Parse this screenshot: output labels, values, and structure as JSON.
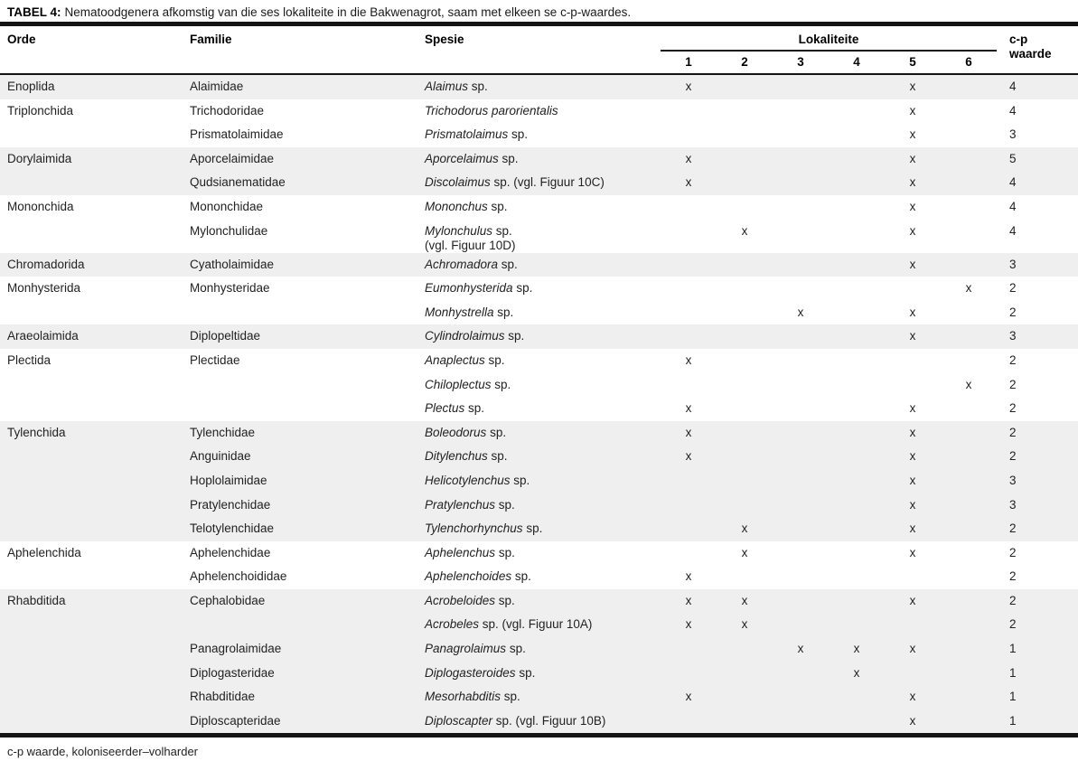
{
  "title": {
    "label": "TABEL 4:",
    "text": "Nematoodgenera afkomstig van die ses lokaliteite in die Bakwenagrot, saam met elkeen se c-p-waardes."
  },
  "header": {
    "orde": "Orde",
    "familie": "Familie",
    "spesie": "Spesie",
    "lokaliteite": "Lokaliteite",
    "locality_numbers": [
      "1",
      "2",
      "3",
      "4",
      "5",
      "6"
    ],
    "cp_line1": "c-p",
    "cp_line2": "waarde"
  },
  "footer": "c-p waarde, koloniseerder–volharder",
  "colors": {
    "stripe": "#efefef",
    "rule": "#141414",
    "text": "#222222"
  },
  "rows": [
    {
      "orde": "Enoplida",
      "familie": "Alaimidae",
      "genus": "Alaimus",
      "species_rest": " sp.",
      "species_line2": "",
      "marks": [
        "x",
        "",
        "",
        "",
        "x",
        ""
      ],
      "cp": "4",
      "shaded": true
    },
    {
      "orde": "Triplonchida",
      "familie": "Trichodoridae",
      "genus": "Trichodorus parorientalis",
      "species_rest": "",
      "species_line2": "",
      "marks": [
        "",
        "",
        "",
        "",
        "x",
        ""
      ],
      "cp": "4",
      "shaded": false
    },
    {
      "orde": "",
      "familie": "Prismatolaimidae",
      "genus": "Prismatolaimus",
      "species_rest": " sp.",
      "species_line2": "",
      "marks": [
        "",
        "",
        "",
        "",
        "x",
        ""
      ],
      "cp": "3",
      "shaded": false
    },
    {
      "orde": "Dorylaimida",
      "familie": "Aporcelaimidae",
      "genus": "Aporcelaimus",
      "species_rest": " sp.",
      "species_line2": "",
      "marks": [
        "x",
        "",
        "",
        "",
        "x",
        ""
      ],
      "cp": "5",
      "shaded": true
    },
    {
      "orde": "",
      "familie": "Qudsianematidae",
      "genus": "Discolaimus",
      "species_rest": " sp. (vgl. Figuur 10C)",
      "species_line2": "",
      "marks": [
        "x",
        "",
        "",
        "",
        "x",
        ""
      ],
      "cp": "4",
      "shaded": true
    },
    {
      "orde": "Mononchida",
      "familie": "Mononchidae",
      "genus": "Mononchus",
      "species_rest": " sp.",
      "species_line2": "",
      "marks": [
        "",
        "",
        "",
        "",
        "x",
        ""
      ],
      "cp": "4",
      "shaded": false
    },
    {
      "orde": "",
      "familie": "Mylonchulidae",
      "genus": "Mylonchulus",
      "species_rest": " sp.",
      "species_line2": "(vgl. Figuur 10D)",
      "marks": [
        "",
        "x",
        "",
        "",
        "x",
        ""
      ],
      "cp": "4",
      "shaded": false
    },
    {
      "orde": "Chromadorida",
      "familie": "Cyatholaimidae",
      "genus": "Achromadora",
      "species_rest": " sp.",
      "species_line2": "",
      "marks": [
        "",
        "",
        "",
        "",
        "x",
        ""
      ],
      "cp": "3",
      "shaded": true
    },
    {
      "orde": "Monhysterida",
      "familie": "Monhysteridae",
      "genus": "Eumonhysterida",
      "species_rest": " sp.",
      "species_line2": "",
      "marks": [
        "",
        "",
        "",
        "",
        "",
        "x"
      ],
      "cp": "2",
      "shaded": false
    },
    {
      "orde": "",
      "familie": "",
      "genus": "Monhystrella",
      "species_rest": " sp.",
      "species_line2": "",
      "marks": [
        "",
        "",
        "x",
        "",
        "x",
        ""
      ],
      "cp": "2",
      "shaded": false
    },
    {
      "orde": "Araeolaimida",
      "familie": "Diplopeltidae",
      "genus": "Cylindrolaimus",
      "species_rest": " sp.",
      "species_line2": "",
      "marks": [
        "",
        "",
        "",
        "",
        "x",
        ""
      ],
      "cp": "3",
      "shaded": true
    },
    {
      "orde": "Plectida",
      "familie": "Plectidae",
      "genus": "Anaplectus",
      "species_rest": " sp.",
      "species_line2": "",
      "marks": [
        "x",
        "",
        "",
        "",
        "",
        ""
      ],
      "cp": "2",
      "shaded": false
    },
    {
      "orde": "",
      "familie": "",
      "genus": "Chiloplectus",
      "species_rest": " sp.",
      "species_line2": "",
      "marks": [
        "",
        "",
        "",
        "",
        "",
        "x"
      ],
      "cp": "2",
      "shaded": false
    },
    {
      "orde": "",
      "familie": "",
      "genus": "Plectus",
      "species_rest": " sp.",
      "species_line2": "",
      "marks": [
        "x",
        "",
        "",
        "",
        "x",
        ""
      ],
      "cp": "2",
      "shaded": false
    },
    {
      "orde": "Tylenchida",
      "familie": "Tylenchidae",
      "genus": "Boleodorus",
      "species_rest": " sp.",
      "species_line2": "",
      "marks": [
        "x",
        "",
        "",
        "",
        "x",
        ""
      ],
      "cp": "2",
      "shaded": true
    },
    {
      "orde": "",
      "familie": "Anguinidae",
      "genus": "Ditylenchus",
      "species_rest": " sp.",
      "species_line2": "",
      "marks": [
        "x",
        "",
        "",
        "",
        "x",
        ""
      ],
      "cp": "2",
      "shaded": true
    },
    {
      "orde": "",
      "familie": "Hoplolaimidae",
      "genus": "Helicotylenchus",
      "species_rest": " sp.",
      "species_line2": "",
      "marks": [
        "",
        "",
        "",
        "",
        "x",
        ""
      ],
      "cp": "3",
      "shaded": true
    },
    {
      "orde": "",
      "familie": "Pratylenchidae",
      "genus": "Pratylenchus",
      "species_rest": " sp.",
      "species_line2": "",
      "marks": [
        "",
        "",
        "",
        "",
        "x",
        ""
      ],
      "cp": "3",
      "shaded": true
    },
    {
      "orde": "",
      "familie": "Telotylenchidae",
      "genus": "Tylenchorhynchus",
      "species_rest": " sp.",
      "species_line2": "",
      "marks": [
        "",
        "x",
        "",
        "",
        "x",
        ""
      ],
      "cp": "2",
      "shaded": true
    },
    {
      "orde": "Aphelenchida",
      "familie": "Aphelenchidae",
      "genus": "Aphelenchus",
      "species_rest": " sp.",
      "species_line2": "",
      "marks": [
        "",
        "x",
        "",
        "",
        "x",
        ""
      ],
      "cp": "2",
      "shaded": false
    },
    {
      "orde": "",
      "familie": "Aphelenchoididae",
      "genus": "Aphelenchoides",
      "species_rest": " sp.",
      "species_line2": "",
      "marks": [
        "x",
        "",
        "",
        "",
        "",
        ""
      ],
      "cp": "2",
      "shaded": false
    },
    {
      "orde": "Rhabditida",
      "familie": "Cephalobidae",
      "genus": "Acrobeloides",
      "species_rest": " sp.",
      "species_line2": "",
      "marks": [
        "x",
        "x",
        "",
        "",
        "x",
        ""
      ],
      "cp": "2",
      "shaded": true
    },
    {
      "orde": "",
      "familie": "",
      "genus": "Acrobeles",
      "species_rest": " sp. (vgl. Figuur 10A)",
      "species_line2": "",
      "marks": [
        "x",
        "x",
        "",
        "",
        "",
        ""
      ],
      "cp": "2",
      "shaded": true
    },
    {
      "orde": "",
      "familie": "Panagrolaimidae",
      "genus": "Panagrolaimus",
      "species_rest": " sp.",
      "species_line2": "",
      "marks": [
        "",
        "",
        "x",
        "x",
        "x",
        ""
      ],
      "cp": "1",
      "shaded": true
    },
    {
      "orde": "",
      "familie": "Diplogasteridae",
      "genus": "Diplogasteroides",
      "species_rest": " sp.",
      "species_line2": "",
      "marks": [
        "",
        "",
        "",
        "x",
        "",
        ""
      ],
      "cp": "1",
      "shaded": true
    },
    {
      "orde": "",
      "familie": "Rhabditidae",
      "genus": "Mesorhabditis",
      "species_rest": " sp.",
      "species_line2": "",
      "marks": [
        "x",
        "",
        "",
        "",
        "x",
        ""
      ],
      "cp": "1",
      "shaded": true
    },
    {
      "orde": "",
      "familie": "Diploscapteridae",
      "genus": "Diploscapter",
      "species_rest": " sp. (vgl. Figuur 10B)",
      "species_line2": "",
      "marks": [
        "",
        "",
        "",
        "",
        "x",
        ""
      ],
      "cp": "1",
      "shaded": true
    }
  ]
}
